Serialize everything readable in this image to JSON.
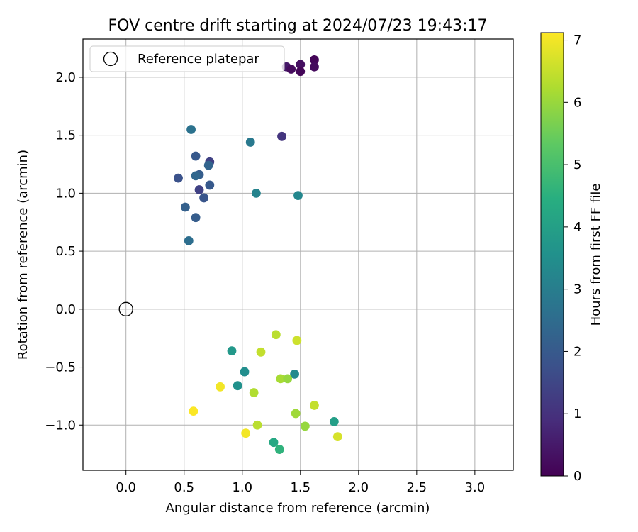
{
  "chart_data": {
    "type": "scatter",
    "title": "FOV centre drift starting at 2024/07/23 19:43:17",
    "xlabel": "Angular distance from reference (arcmin)",
    "ylabel": "Rotation from reference (arcmin)",
    "xlim": [
      -0.37,
      3.33
    ],
    "ylim": [
      -1.39,
      2.33
    ],
    "xticks": [
      0.0,
      0.5,
      1.0,
      1.5,
      2.0,
      2.5,
      3.0
    ],
    "yticks": [
      -1.0,
      -0.5,
      0.0,
      0.5,
      1.0,
      1.5,
      2.0
    ],
    "grid": true,
    "legend": {
      "position": "top-left",
      "entries": [
        {
          "label": "Reference platepar",
          "marker": "open-circle"
        }
      ]
    },
    "reference_point": {
      "x": 0.0,
      "y": 0.0
    },
    "colorbar": {
      "label": "Hours from first FF file",
      "colormap": "viridis",
      "range": [
        0,
        7.12
      ],
      "ticks": [
        0,
        1,
        2,
        3,
        4,
        5,
        6,
        7
      ]
    },
    "points": [
      {
        "x": 1.62,
        "y": 2.15,
        "h": 0.1
      },
      {
        "x": 1.5,
        "y": 2.11,
        "h": 0.3
      },
      {
        "x": 1.62,
        "y": 2.09,
        "h": 0.2
      },
      {
        "x": 1.38,
        "y": 2.09,
        "h": 0.5
      },
      {
        "x": 1.42,
        "y": 2.07,
        "h": 0.2
      },
      {
        "x": 1.5,
        "y": 2.05,
        "h": 0.1
      },
      {
        "x": 1.34,
        "y": 1.49,
        "h": 1.1
      },
      {
        "x": 1.07,
        "y": 1.44,
        "h": 2.9
      },
      {
        "x": 0.56,
        "y": 1.55,
        "h": 2.7
      },
      {
        "x": 0.6,
        "y": 1.32,
        "h": 2.0
      },
      {
        "x": 0.72,
        "y": 1.27,
        "h": 1.4
      },
      {
        "x": 0.71,
        "y": 1.24,
        "h": 2.3
      },
      {
        "x": 0.63,
        "y": 1.16,
        "h": 2.1
      },
      {
        "x": 0.6,
        "y": 1.15,
        "h": 2.4
      },
      {
        "x": 0.45,
        "y": 1.13,
        "h": 1.8
      },
      {
        "x": 0.72,
        "y": 1.07,
        "h": 2.0
      },
      {
        "x": 0.63,
        "y": 1.03,
        "h": 1.4
      },
      {
        "x": 0.67,
        "y": 0.96,
        "h": 1.9
      },
      {
        "x": 1.12,
        "y": 1.0,
        "h": 3.2
      },
      {
        "x": 1.48,
        "y": 0.98,
        "h": 3.3
      },
      {
        "x": 0.51,
        "y": 0.88,
        "h": 2.2
      },
      {
        "x": 0.6,
        "y": 0.79,
        "h": 2.1
      },
      {
        "x": 0.54,
        "y": 0.59,
        "h": 2.6
      },
      {
        "x": 1.29,
        "y": -0.22,
        "h": 6.4
      },
      {
        "x": 1.47,
        "y": -0.27,
        "h": 6.6
      },
      {
        "x": 0.91,
        "y": -0.36,
        "h": 3.8
      },
      {
        "x": 1.16,
        "y": -0.37,
        "h": 6.5
      },
      {
        "x": 1.02,
        "y": -0.54,
        "h": 3.5
      },
      {
        "x": 1.45,
        "y": -0.56,
        "h": 3.4
      },
      {
        "x": 1.33,
        "y": -0.6,
        "h": 6.2
      },
      {
        "x": 1.39,
        "y": -0.6,
        "h": 6.0
      },
      {
        "x": 0.96,
        "y": -0.66,
        "h": 3.6
      },
      {
        "x": 0.81,
        "y": -0.67,
        "h": 7.0
      },
      {
        "x": 1.1,
        "y": -0.72,
        "h": 6.3
      },
      {
        "x": 1.62,
        "y": -0.83,
        "h": 6.5
      },
      {
        "x": 0.58,
        "y": -0.88,
        "h": 7.1
      },
      {
        "x": 1.46,
        "y": -0.9,
        "h": 6.1
      },
      {
        "x": 1.79,
        "y": -0.97,
        "h": 4.0
      },
      {
        "x": 1.13,
        "y": -1.0,
        "h": 6.4
      },
      {
        "x": 1.54,
        "y": -1.01,
        "h": 6.0
      },
      {
        "x": 1.03,
        "y": -1.07,
        "h": 7.0
      },
      {
        "x": 1.82,
        "y": -1.1,
        "h": 6.7
      },
      {
        "x": 1.27,
        "y": -1.15,
        "h": 4.3
      },
      {
        "x": 1.32,
        "y": -1.21,
        "h": 4.6
      }
    ]
  }
}
